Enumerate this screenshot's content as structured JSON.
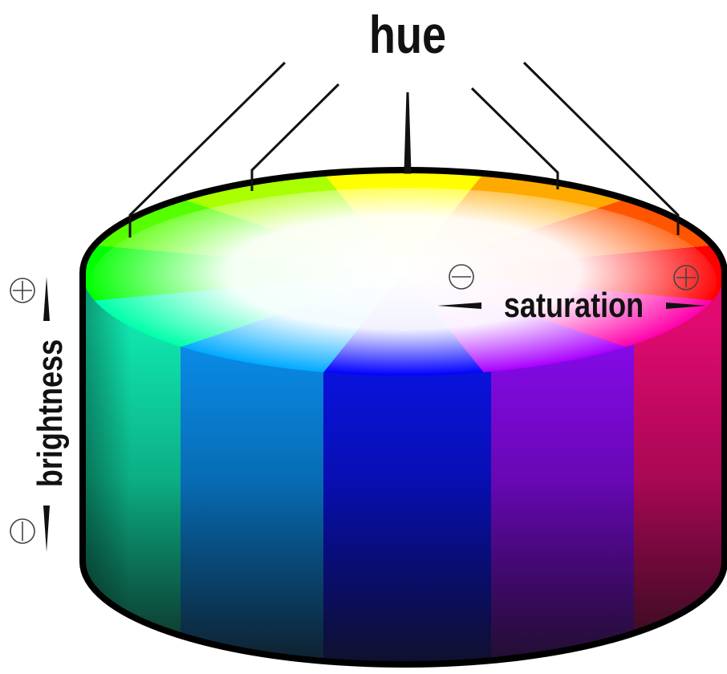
{
  "labels": {
    "hue": "hue",
    "saturation": "saturation",
    "brightness": "brightness"
  }
}
